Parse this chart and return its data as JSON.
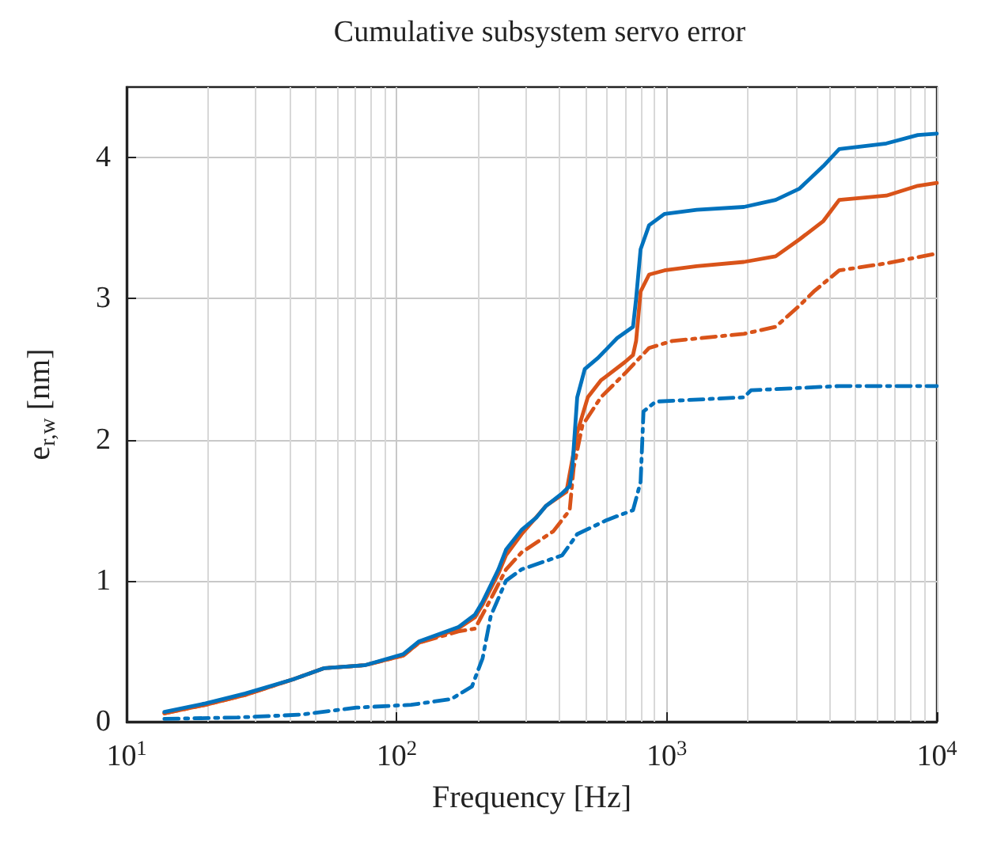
{
  "chart_data": {
    "type": "line",
    "title": "Cumulative subsystem servo error",
    "xlabel": "Frequency [Hz]",
    "ylabel": "e$_{r,w}$ [nm]",
    "log": "x",
    "grid": true,
    "marker": "none",
    "xlim": [
      10,
      10000
    ],
    "xticks": [
      {
        "value": 10,
        "label": "10$^{1}$"
      },
      {
        "value": 100,
        "label": "10$^{2}$"
      },
      {
        "value": 1000,
        "label": "10$^{3}$"
      },
      {
        "value": 10000,
        "label": "10$^{4}$"
      }
    ],
    "ylim": [
      0,
      4.5
    ],
    "yticks": [
      0,
      1,
      2,
      3,
      4
    ],
    "series": [
      {
        "color": "#0072bd",
        "line_style": "solid",
        "x": [
          13.8,
          19.6,
          27.5,
          41.3,
          54,
          76,
          106,
          121,
          169,
          195,
          208,
          238,
          254,
          290,
          330,
          357,
          410,
          437,
          447,
          466,
          497,
          557,
          655,
          750,
          770,
          800,
          860,
          980,
          1290,
          1930,
          2530,
          3100,
          3800,
          4350,
          6500,
          8500,
          10000
        ],
        "values": [
          0.07,
          0.13,
          0.2,
          0.3,
          0.38,
          0.4,
          0.48,
          0.57,
          0.67,
          0.76,
          0.85,
          1.08,
          1.22,
          1.36,
          1.45,
          1.53,
          1.62,
          1.67,
          1.8,
          2.3,
          2.5,
          2.58,
          2.72,
          2.8,
          3.0,
          3.35,
          3.52,
          3.6,
          3.63,
          3.65,
          3.7,
          3.78,
          3.94,
          4.06,
          4.1,
          4.16,
          4.17
        ]
      },
      {
        "color": "#d95319",
        "line_style": "solid",
        "x": [
          13.8,
          19.6,
          27.5,
          41.3,
          54,
          76,
          106,
          121,
          169,
          195,
          208,
          238,
          254,
          290,
          357,
          425,
          466,
          510,
          570,
          700,
          750,
          770,
          800,
          860,
          980,
          1290,
          1930,
          2530,
          3100,
          3800,
          4350,
          6500,
          8500,
          10000
        ],
        "values": [
          0.06,
          0.12,
          0.19,
          0.3,
          0.38,
          0.4,
          0.47,
          0.56,
          0.66,
          0.74,
          0.83,
          1.05,
          1.18,
          1.33,
          1.53,
          1.63,
          2.05,
          2.3,
          2.42,
          2.55,
          2.6,
          2.7,
          3.05,
          3.17,
          3.2,
          3.23,
          3.26,
          3.3,
          3.42,
          3.55,
          3.7,
          3.73,
          3.8,
          3.82
        ]
      },
      {
        "color": "#d95319",
        "line_style": "dashed",
        "x": [
          13.8,
          19.6,
          27.5,
          41.3,
          54,
          76,
          106,
          121,
          169,
          195,
          223,
          254,
          290,
          380,
          437,
          452,
          487,
          570,
          700,
          860,
          1050,
          1930,
          2530,
          3100,
          3500,
          4350,
          6500,
          10000
        ],
        "values": [
          0.06,
          0.12,
          0.19,
          0.3,
          0.38,
          0.4,
          0.47,
          0.56,
          0.64,
          0.66,
          0.87,
          1.08,
          1.2,
          1.35,
          1.5,
          1.8,
          2.1,
          2.3,
          2.47,
          2.65,
          2.7,
          2.75,
          2.8,
          2.95,
          3.05,
          3.2,
          3.25,
          3.32
        ]
      },
      {
        "color": "#0072bd",
        "line_style": "dashed",
        "x": [
          13.8,
          25.7,
          44,
          71,
          113,
          159,
          190,
          208,
          223,
          254,
          290,
          410,
          466,
          600,
          750,
          800,
          820,
          910,
          1930,
          2050,
          4350,
          10000
        ],
        "values": [
          0.02,
          0.03,
          0.05,
          0.1,
          0.12,
          0.16,
          0.25,
          0.45,
          0.75,
          1.0,
          1.08,
          1.18,
          1.33,
          1.43,
          1.5,
          1.7,
          2.2,
          2.27,
          2.3,
          2.35,
          2.38,
          2.38
        ]
      }
    ]
  }
}
